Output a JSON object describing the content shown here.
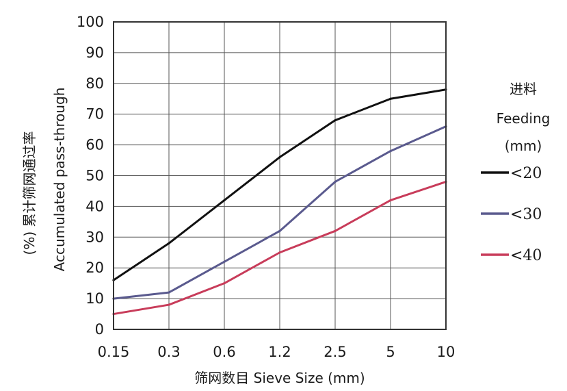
{
  "chart_data": {
    "type": "line",
    "xlabel": "筛网数目 Sieve Size (mm)",
    "ylabel_cn": "(%) 累计筛网通过率",
    "ylabel_en": "Accumulated pass-through",
    "categories": [
      "0.15",
      "0.3",
      "0.6",
      "1.2",
      "2.5",
      "5",
      "10"
    ],
    "ylim": [
      0,
      100
    ],
    "yticks": [
      0,
      10,
      20,
      30,
      40,
      50,
      60,
      70,
      80,
      90,
      100
    ],
    "grid": true,
    "legend": {
      "placement": "right",
      "title_lines": [
        "进料",
        "Feeding",
        "(mm)"
      ]
    },
    "series": [
      {
        "name": "<20",
        "color": "#111111",
        "values": [
          16,
          28,
          42,
          56,
          68,
          75,
          78
        ]
      },
      {
        "name": "<30",
        "color": "#5a5a8e",
        "values": [
          10,
          12,
          22,
          32,
          48,
          58,
          66
        ]
      },
      {
        "name": "<40",
        "color": "#c83c5a",
        "values": [
          5,
          8,
          15,
          25,
          32,
          42,
          48
        ]
      }
    ]
  }
}
